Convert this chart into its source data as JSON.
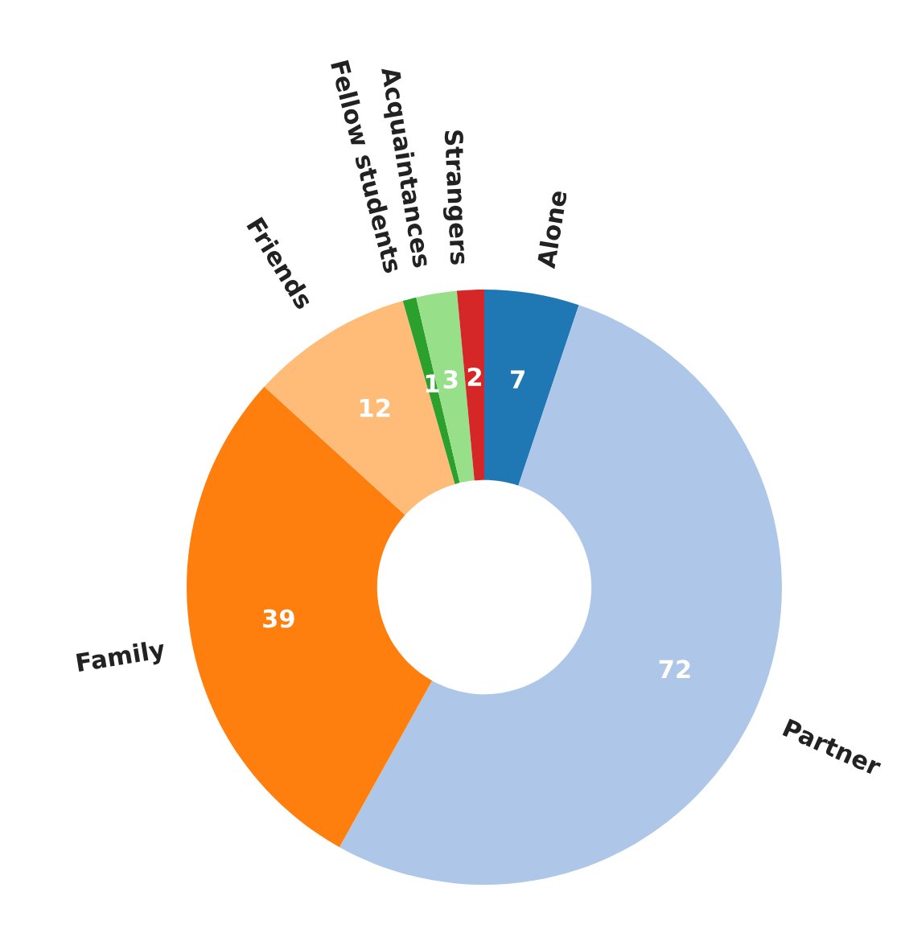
{
  "chart_data": {
    "type": "donut",
    "categories": [
      "Alone",
      "Partner",
      "Family",
      "Friends",
      "Fellow students",
      "Acquaintances",
      "Strangers"
    ],
    "values": [
      7,
      72,
      39,
      12,
      1,
      3,
      2
    ],
    "colors": [
      "#1f77b4",
      "#aec7e8",
      "#ff7f0e",
      "#ffbb78",
      "#2ca02c",
      "#98df8a",
      "#d62728"
    ],
    "data_labels": true,
    "legend": false
  }
}
